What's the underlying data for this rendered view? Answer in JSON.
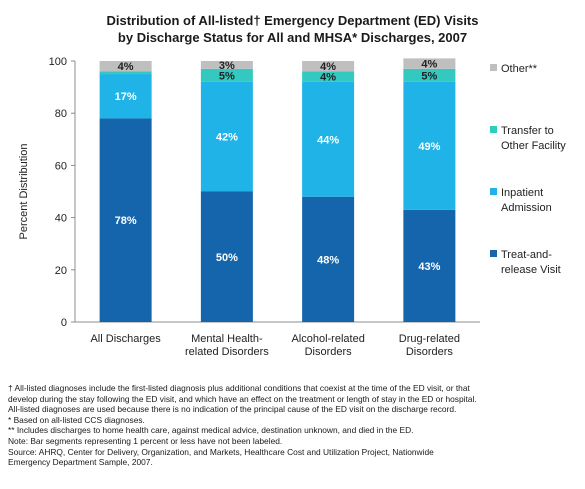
{
  "title_line1": "Distribution of All-listed† Emergency Department (ED) Visits",
  "title_line2": "by Discharge Status for All and MHSA* Discharges, 2007",
  "chart_data": {
    "type": "bar",
    "stacked": true,
    "categories": [
      [
        "All Discharges"
      ],
      [
        "Mental Health-",
        "related Disorders"
      ],
      [
        "Alcohol-related",
        "Disorders"
      ],
      [
        "Drug-related",
        "Disorders"
      ]
    ],
    "ylabel": "Percent Distribution",
    "ylim": [
      0,
      100
    ],
    "yticks": [
      0,
      20,
      40,
      60,
      80,
      100
    ],
    "grid": false,
    "legend_position": "right",
    "series": [
      {
        "name": [
          "Treat-and-",
          "release Visit"
        ],
        "color": "#1565ad",
        "values": [
          78,
          50,
          48,
          43
        ],
        "labels": [
          "78%",
          "50%",
          "48%",
          "43%"
        ],
        "label_color": "#ffffff"
      },
      {
        "name": [
          "Inpatient",
          "Admission"
        ],
        "color": "#1fb3e8",
        "values": [
          17,
          42,
          44,
          49
        ],
        "labels": [
          "17%",
          "42%",
          "44%",
          "49%"
        ],
        "label_color": "#ffffff"
      },
      {
        "name": [
          "Transfer to",
          "Other Facility"
        ],
        "color": "#33c9c0",
        "values": [
          1,
          5,
          4,
          5
        ],
        "labels": [
          "",
          "5%",
          "4%",
          "5%"
        ],
        "label_color": "#222222"
      },
      {
        "name": [
          "Other**"
        ],
        "color": "#bfbfbf",
        "values": [
          4,
          3,
          4,
          4
        ],
        "labels": [
          "4%",
          "3%",
          "4%",
          "4%"
        ],
        "label_color": "#222222"
      }
    ]
  },
  "notes": [
    "† All-listed diagnoses include the first-listed diagnosis plus additional conditions that coexist at the time of the ED visit, or that",
    "develop during the stay following the ED visit, and which have an effect on the treatment or length of stay in the ED or hospital.",
    "All-listed diagnoses are used because there is no indication of the principal cause of the ED visit on the discharge record.",
    "* Based on all-listed CCS diagnoses.",
    "** Includes discharges to home health care, against medical advice, destination unknown, and died in the ED.",
    "Note:  Bar segments representing 1 percent or less have not been labeled.",
    "Source:  AHRQ, Center for Delivery, Organization, and Markets, Healthcare Cost and Utilization Project, Nationwide",
    "Emergency Department Sample, 2007."
  ]
}
